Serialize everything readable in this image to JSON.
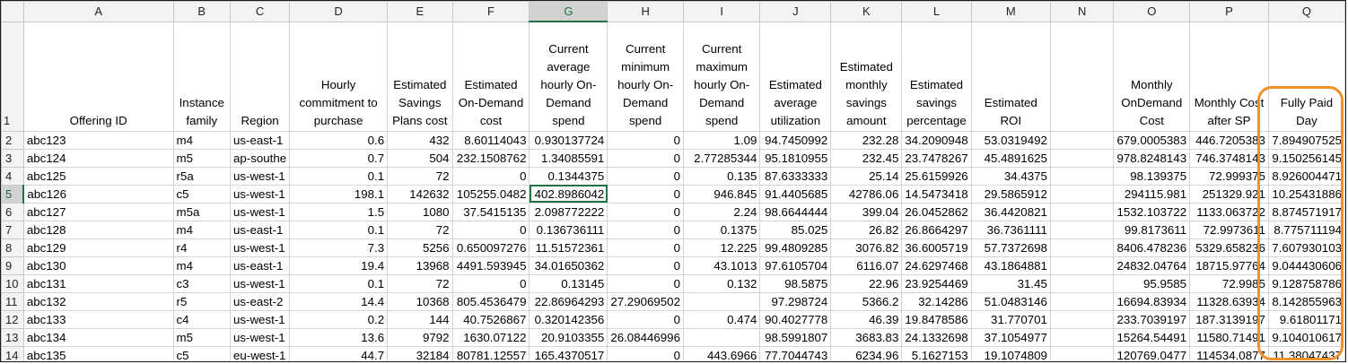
{
  "columns": [
    "A",
    "B",
    "C",
    "D",
    "E",
    "F",
    "G",
    "H",
    "I",
    "J",
    "K",
    "L",
    "M",
    "N",
    "O",
    "P",
    "Q"
  ],
  "header_row_number": "1",
  "headers": [
    "Offering ID",
    "Instance family",
    "Region",
    "Hourly commitment to purchase",
    "Estimated Savings Plans cost",
    "Estimated On-Demand cost",
    "Current average hourly On-Demand spend",
    "Current minimum hourly On-Demand spend",
    "Current maximum hourly On-Demand spend",
    "Estimated average utilization",
    "Estimated monthly savings amount",
    "Estimated savings percentage",
    "Estimated ROI",
    "",
    "Monthly OnDemand Cost",
    "Monthly Cost after SP",
    "Fully Paid Day"
  ],
  "rows": [
    {
      "num": "2",
      "cells": [
        "abc123",
        "m4",
        "us-east-1",
        "0.6",
        "432",
        "8.60114043",
        "0.930137724",
        "0",
        "1.09",
        "94.7450992",
        "232.28",
        "34.2090948",
        "53.0319492",
        "",
        "679.0005383",
        "446.7205383",
        "7.894907525"
      ]
    },
    {
      "num": "3",
      "cells": [
        "abc124",
        "m5",
        "ap-southe",
        "0.7",
        "504",
        "232.1508762",
        "1.34085591",
        "0",
        "2.77285344",
        "95.1810955",
        "232.45",
        "23.7478267",
        "45.4891625",
        "",
        "978.8248143",
        "746.3748143",
        "9.150256145"
      ]
    },
    {
      "num": "4",
      "cells": [
        "abc125",
        "r5a",
        "us-west-1",
        "0.1",
        "72",
        "0",
        "0.1344375",
        "0",
        "0.135",
        "87.6333333",
        "25.14",
        "25.6159926",
        "34.4375",
        "",
        "98.139375",
        "72.999375",
        "8.926004471"
      ]
    },
    {
      "num": "5",
      "cells": [
        "abc126",
        "c5",
        "us-west-1",
        "198.1",
        "142632",
        "105255.0482",
        "402.8986042",
        "0",
        "946.845",
        "91.4405685",
        "42786.06",
        "14.5473418",
        "29.5865912",
        "",
        "294115.981",
        "251329.921",
        "10.25431886"
      ]
    },
    {
      "num": "6",
      "cells": [
        "abc127",
        "m5a",
        "us-west-1",
        "1.5",
        "1080",
        "37.5415135",
        "2.098772222",
        "0",
        "2.24",
        "98.6644444",
        "399.04",
        "26.0452862",
        "36.4420821",
        "",
        "1532.103722",
        "1133.063722",
        "8.874571917"
      ]
    },
    {
      "num": "7",
      "cells": [
        "abc128",
        "m4",
        "us-east-1",
        "0.1",
        "72",
        "0",
        "0.136736111",
        "0",
        "0.1375",
        "85.025",
        "26.82",
        "26.8664297",
        "36.7361111",
        "",
        "99.8173611",
        "72.9973611",
        "8.775711194"
      ]
    },
    {
      "num": "8",
      "cells": [
        "abc129",
        "r4",
        "us-west-1",
        "7.3",
        "5256",
        "0.650097276",
        "11.51572361",
        "0",
        "12.225",
        "99.4809285",
        "3076.82",
        "36.6005719",
        "57.7372698",
        "",
        "8406.478236",
        "5329.658236",
        "7.607930103"
      ]
    },
    {
      "num": "9",
      "cells": [
        "abc130",
        "m4",
        "us-east-1",
        "19.4",
        "13968",
        "4491.593945",
        "34.01650362",
        "0",
        "43.1013",
        "97.6105704",
        "6116.07",
        "24.6297468",
        "43.1864881",
        "",
        "24832.04764",
        "18715.97764",
        "9.044430606"
      ]
    },
    {
      "num": "10",
      "cells": [
        "abc131",
        "c3",
        "us-west-1",
        "0.1",
        "72",
        "0",
        "0.13145",
        "0",
        "0.132",
        "98.5875",
        "22.96",
        "23.9254469",
        "31.45",
        "",
        "95.9585",
        "72.9985",
        "9.128758786"
      ]
    },
    {
      "num": "11",
      "cells": [
        "abc132",
        "r5",
        "us-east-2",
        "14.4",
        "10368",
        "805.4536479",
        "22.86964293",
        "27.29069502",
        "",
        "97.298724",
        "5366.2",
        "32.14286",
        "51.0483146",
        "",
        "16694.83934",
        "11328.63934",
        "8.142855963"
      ]
    },
    {
      "num": "12",
      "cells": [
        "abc133",
        "c4",
        "us-west-1",
        "0.2",
        "144",
        "40.7526867",
        "0.320142356",
        "0",
        "0.474",
        "90.4027778",
        "46.39",
        "19.8478586",
        "31.770701",
        "",
        "233.7039197",
        "187.3139197",
        "9.61801171"
      ]
    },
    {
      "num": "13",
      "cells": [
        "abc134",
        "m5",
        "us-west-1",
        "13.6",
        "9792",
        "1630.07122",
        "20.9103355",
        "26.08446996",
        "",
        "98.5991807",
        "3683.83",
        "24.1332698",
        "37.1054977",
        "",
        "15264.54491",
        "11580.71491",
        "9.104010617"
      ]
    },
    {
      "num": "14",
      "cells": [
        "abc135",
        "c5",
        "eu-west-1",
        "44.7",
        "32184",
        "80781.12557",
        "165.4370517",
        "0",
        "443.6966",
        "77.7044743",
        "6234.96",
        "5.1627153",
        "19.1074809",
        "",
        "120769.0477",
        "114534.0877",
        "11.38047437"
      ]
    }
  ],
  "selection": {
    "column": "G",
    "row": "5"
  },
  "colors": {
    "accent_green": "#217346",
    "highlight_orange": "#f0912a",
    "header_bg": "#f3f3f3",
    "gridline": "#d4d4d4"
  }
}
